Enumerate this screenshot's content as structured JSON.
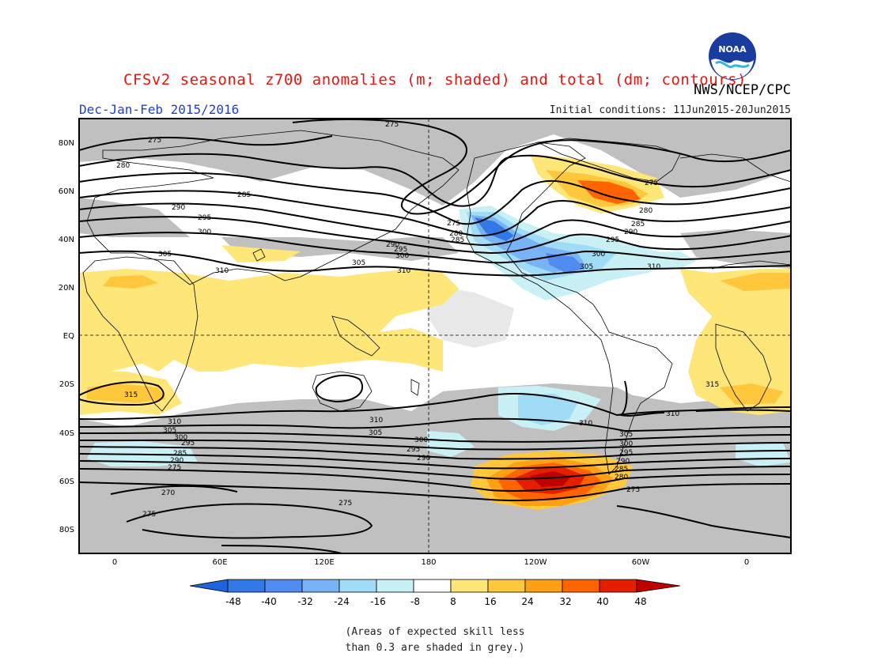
{
  "header": {
    "title": "CFSv2 seasonal z700 anomalies (m; shaded) and total (dm; contours)",
    "agency": "NWS/NCEP/CPC",
    "season": "Dec-Jan-Feb 2015/2016",
    "initial_conditions": "Initial conditions: 11Jun2015-20Jun2015",
    "logo_text": "NOAA"
  },
  "map": {
    "lat_labels": [
      "80N",
      "60N",
      "40N",
      "20N",
      "EQ",
      "20S",
      "40S",
      "60S",
      "80S"
    ],
    "lon_labels": [
      "0",
      "60E",
      "120E",
      "180",
      "120W",
      "60W",
      "0"
    ],
    "contour_labels": [
      "275",
      "280",
      "285",
      "290",
      "295",
      "300",
      "305",
      "310",
      "315",
      "270"
    ]
  },
  "colorbar": {
    "ticks": [
      "-48",
      "-40",
      "-32",
      "-24",
      "-16",
      "-8",
      "8",
      "16",
      "24",
      "32",
      "40",
      "48"
    ],
    "colors": {
      "neg": [
        "#1e64dc",
        "#3278e6",
        "#508cf0",
        "#78b4f5",
        "#a0dcf5",
        "#c8f0f5"
      ],
      "zero": "#ffffff",
      "pos": [
        "#ffe678",
        "#ffc83c",
        "#ffa014",
        "#ff6400",
        "#e61e00",
        "#be0000"
      ]
    }
  },
  "colors": {
    "skill_grey": "#c0c0c0",
    "title_red": "#e8150f",
    "subtitle_blue": "#1f3fd6"
  },
  "notes": {
    "line1": "(Areas of expected skill less",
    "line2": "than 0.3 are shaded in grey.)"
  }
}
